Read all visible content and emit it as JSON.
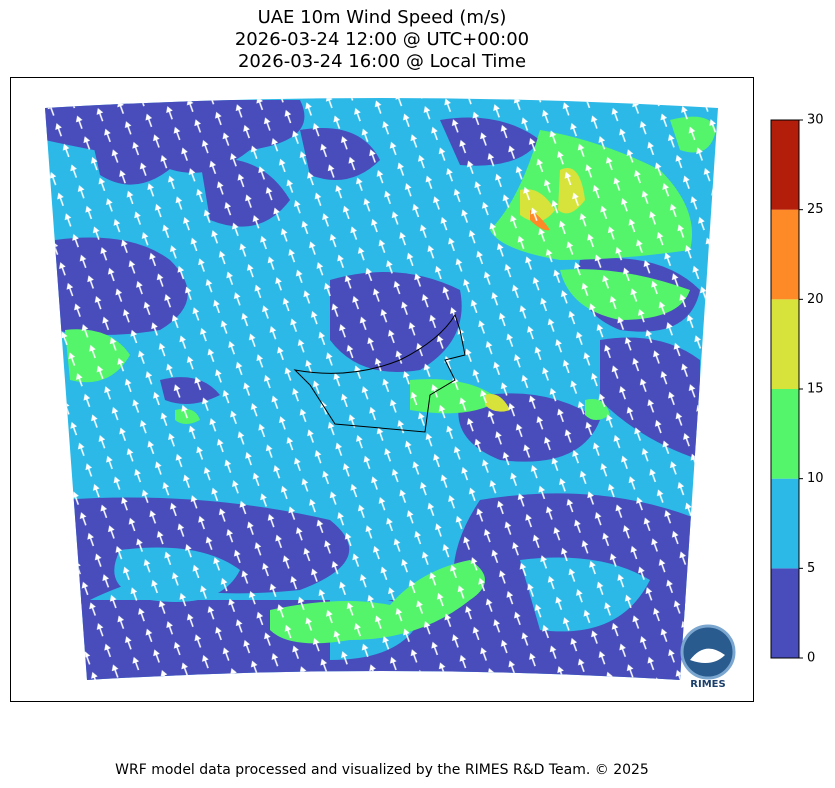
{
  "title": [
    "UAE 10m Wind Speed (m/s)",
    "2026-03-24 12:00 @ UTC+00:00",
    "2026-03-24 16:00 @ Local Time"
  ],
  "colorbar": {
    "lim": [
      0,
      30
    ],
    "ticks": [
      0,
      5,
      10,
      15,
      20,
      25,
      30
    ],
    "colors": [
      "#484dbb",
      "#2cb9e7",
      "#55f56b",
      "#d7e33a",
      "#fd8a26",
      "#b21e0a"
    ]
  },
  "logo": "RIMES",
  "footer": "WRF model data processed and visualized by the RIMES R&D Team. © 2025"
}
